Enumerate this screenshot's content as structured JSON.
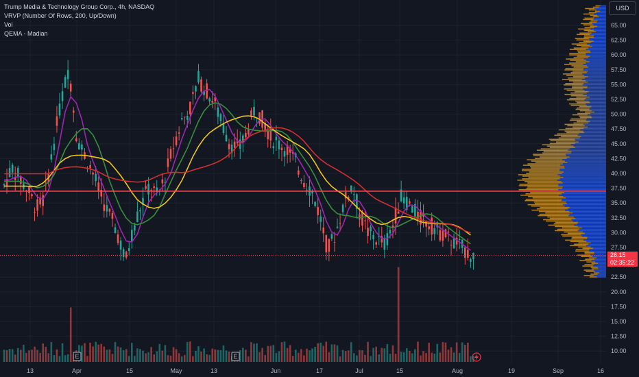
{
  "legend": {
    "title": "Trump Media & Technology Group Corp., 4h, NASDAQ",
    "vrvp": "VRVP (Number Of Rows, 200, Up/Down)",
    "vol": "Vol",
    "qema": "QEMA - Madian"
  },
  "currency": "USD",
  "last_price": {
    "price": "26.15",
    "countdown": "02:35:22"
  },
  "y_ticks": [
    "65.00",
    "62.50",
    "60.00",
    "57.50",
    "55.00",
    "52.50",
    "50.00",
    "47.50",
    "45.00",
    "42.50",
    "40.00",
    "37.50",
    "35.00",
    "32.50",
    "30.00",
    "27.50",
    "22.50",
    "20.00",
    "17.50",
    "15.00",
    "12.50",
    "10.00"
  ],
  "x_ticks": [
    "13",
    "Apr",
    "15",
    "May",
    "13",
    "Jun",
    "17",
    "Jul",
    "15",
    "Aug",
    "19",
    "Sep",
    "16"
  ],
  "event_markers": [
    "E",
    "E"
  ],
  "colors": {
    "up": "#26a69a",
    "down": "#ef5350",
    "ema_purple": "#9c27b0",
    "ema_green": "#388e3c",
    "ema_yellow": "#f0c419",
    "ema_red": "#d32f2f",
    "hline": "#f7525f",
    "vp_up": "#2962ff",
    "vp_down": "#e2a12a"
  }
}
